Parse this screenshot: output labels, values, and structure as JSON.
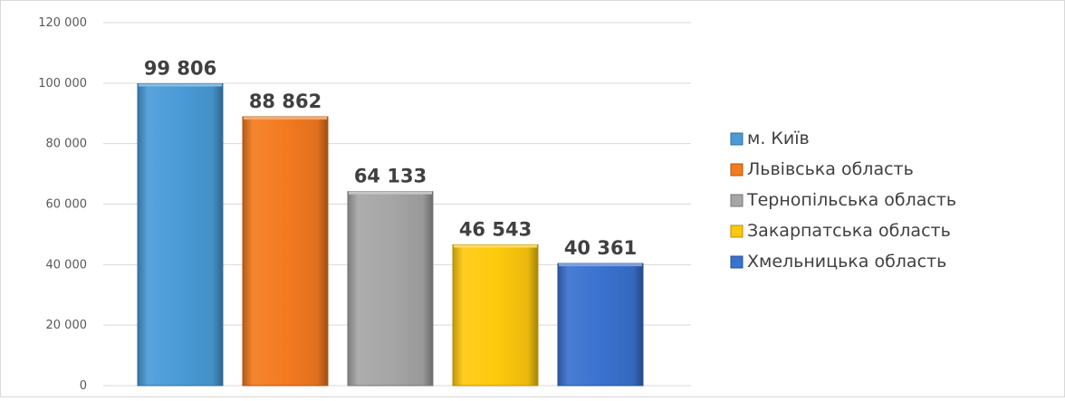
{
  "chart_data": {
    "type": "bar",
    "title": "",
    "xlabel": "",
    "ylabel": "",
    "ylim": [
      0,
      120000
    ],
    "yticks": [
      0,
      20000,
      40000,
      60000,
      80000,
      100000,
      120000
    ],
    "ytick_labels": [
      "0",
      "20 000",
      "40 000",
      "60 000",
      "80 000",
      "100 000",
      "120 000"
    ],
    "grid": true,
    "legend_position": "right",
    "categories": [
      "м. Київ",
      "Львівська область",
      "Тернопільська область",
      "Закарпатська область",
      "Хмельницька область"
    ],
    "values": [
      99806,
      88862,
      64133,
      46543,
      40361
    ],
    "data_labels": [
      "99 806",
      "88 862",
      "64 133",
      "46 543",
      "40 361"
    ],
    "colors": [
      "#4a9bd8",
      "#f47a1f",
      "#a6a6a6",
      "#ffc90e",
      "#3a72d0"
    ]
  }
}
